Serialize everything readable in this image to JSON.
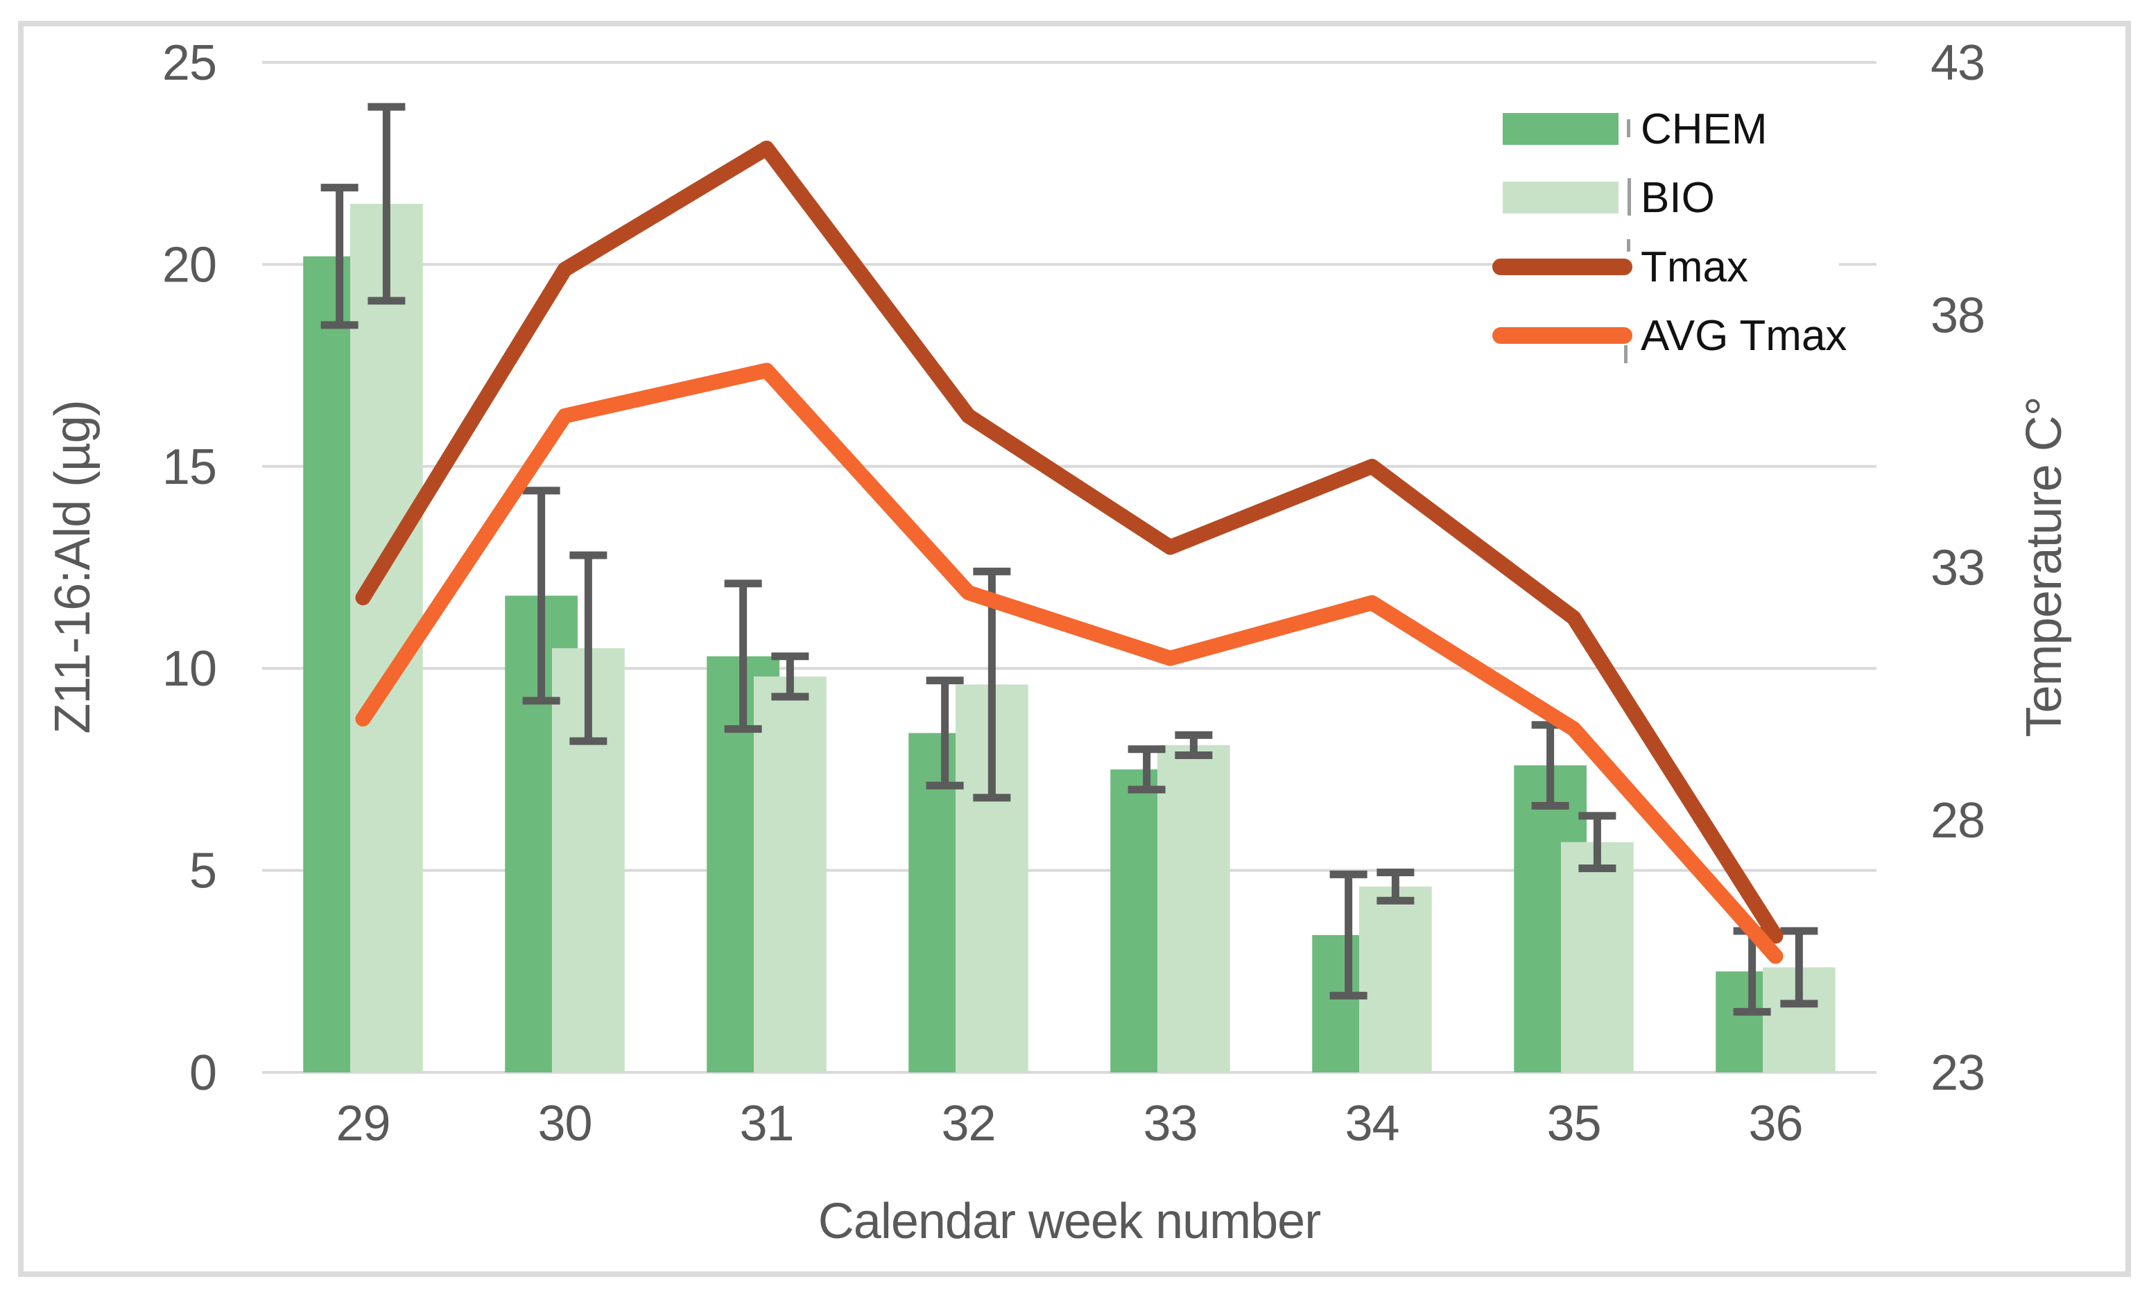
{
  "figure": {
    "background": "#FFFFFF",
    "border_color": "#DBDBDB"
  },
  "chart_data": {
    "type": "bar+line combo",
    "title": "",
    "xlabel": "Calendar week number",
    "ylabel": "Z11-16:Ald (µg)",
    "y2label": "Temperature C°",
    "categories": [
      "29",
      "30",
      "31",
      "32",
      "33",
      "34",
      "35",
      "36"
    ],
    "series": [
      {
        "name": "CHEM",
        "type": "bar",
        "axis": "left",
        "color": "#6DBA7D",
        "values": [
          20.2,
          11.8,
          10.3,
          8.4,
          7.5,
          3.4,
          7.6,
          2.5
        ],
        "errors": [
          1.7,
          2.6,
          1.8,
          1.3,
          0.5,
          1.5,
          1.0,
          1.0
        ]
      },
      {
        "name": "BIO",
        "type": "bar",
        "axis": "left",
        "color": "#C8E2C8",
        "values": [
          21.5,
          10.5,
          9.8,
          9.6,
          8.1,
          4.6,
          5.7,
          2.6
        ],
        "errors": [
          2.4,
          2.3,
          0.5,
          2.8,
          0.25,
          0.35,
          0.65,
          0.9
        ]
      },
      {
        "name": "Tmax",
        "type": "line",
        "axis": "right",
        "color": "#B54A22",
        "values": [
          32.4,
          38.9,
          41.3,
          36.0,
          33.4,
          35.0,
          32.0,
          25.7
        ]
      },
      {
        "name": "AVG Tmax",
        "type": "line",
        "axis": "right",
        "color": "#F4672E",
        "values": [
          30.0,
          36.0,
          36.9,
          32.5,
          31.2,
          32.3,
          29.8,
          25.3
        ]
      }
    ],
    "left_axis": {
      "min": 0,
      "max": 25,
      "ticks": [
        "0",
        "5",
        "10",
        "15",
        "20",
        "25"
      ]
    },
    "right_axis": {
      "min": 23,
      "max": 43,
      "ticks": [
        "23",
        "28",
        "33",
        "38",
        "43"
      ]
    },
    "grid": "horizontal",
    "grid_color": "#D9D9D9",
    "error_bar_color": "#5B5B5B",
    "tick_label_color": "#595959",
    "legend_position": "upper right",
    "legend_text_color": "#111111",
    "legend_labels": [
      "CHEM",
      "BIO",
      "Tmax",
      "AVG Tmax"
    ]
  }
}
